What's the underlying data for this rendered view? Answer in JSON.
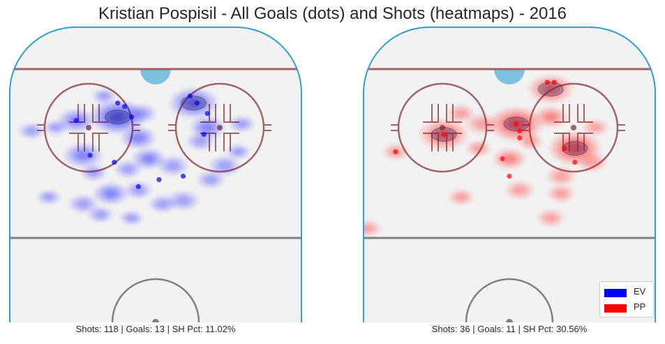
{
  "title": "Kristian Pospisil - All Goals (dots) and Shots (heatmaps) - 2016",
  "colors": {
    "ice": "#f2f2f2",
    "boards": "#2e9fd0",
    "goal_line": "#a06464",
    "circle": "#a06464",
    "blue_line": "#808080",
    "crease": "#7cc2e0",
    "ev": "#0000ff",
    "pp": "#ff0000"
  },
  "legend": {
    "position": "lower-right",
    "items": [
      {
        "label": "EV",
        "color": "#0000ff"
      },
      {
        "label": "PP",
        "color": "#ff0000"
      }
    ]
  },
  "chart_data": [
    {
      "type": "scatter",
      "strength": "EV",
      "caption": "Shots: 118 | Goals: 13 | SH Pct: 11.02%",
      "shots": 118,
      "goals_count": 13,
      "sh_pct": "11.02%",
      "xlim": [
        -42.5,
        42.5
      ],
      "ylim": [
        0,
        85
      ],
      "goals": [
        {
          "x": -11,
          "y": 63
        },
        {
          "x": -9,
          "y": 62
        },
        {
          "x": -23,
          "y": 58
        },
        {
          "x": -7,
          "y": 59
        },
        {
          "x": 10,
          "y": 65
        },
        {
          "x": 12,
          "y": 63
        },
        {
          "x": 15,
          "y": 60
        },
        {
          "x": 14,
          "y": 54
        },
        {
          "x": -19,
          "y": 48
        },
        {
          "x": -12,
          "y": 46
        },
        {
          "x": 1,
          "y": 41
        },
        {
          "x": -5,
          "y": 39
        },
        {
          "x": 8,
          "y": 42
        }
      ],
      "heatmap": [
        {
          "x": -11,
          "y": 59,
          "w": 0.95
        },
        {
          "x": 11,
          "y": 63,
          "w": 0.8
        },
        {
          "x": -21,
          "y": 48,
          "w": 0.55
        },
        {
          "x": -23,
          "y": 58,
          "w": 0.5
        },
        {
          "x": -5,
          "y": 53,
          "w": 0.45
        },
        {
          "x": -2,
          "y": 47,
          "w": 0.4
        },
        {
          "x": 15,
          "y": 56,
          "w": 0.45
        },
        {
          "x": 20,
          "y": 45,
          "w": 0.35
        },
        {
          "x": 5,
          "y": 45,
          "w": 0.35
        },
        {
          "x": -13,
          "y": 37,
          "w": 0.45
        },
        {
          "x": -5,
          "y": 38,
          "w": 0.25
        },
        {
          "x": 8,
          "y": 35,
          "w": 0.35
        },
        {
          "x": 2,
          "y": 34,
          "w": 0.25
        },
        {
          "x": -21,
          "y": 34,
          "w": 0.3
        },
        {
          "x": -36,
          "y": 55,
          "w": 0.2
        },
        {
          "x": -29,
          "y": 56,
          "w": 0.15
        },
        {
          "x": 16,
          "y": 41,
          "w": 0.25
        },
        {
          "x": 25,
          "y": 57,
          "w": 0.2
        },
        {
          "x": -4,
          "y": 60,
          "w": 0.3
        },
        {
          "x": 13,
          "y": 52,
          "w": 0.25
        },
        {
          "x": -16,
          "y": 31,
          "w": 0.2
        },
        {
          "x": -8,
          "y": 44,
          "w": 0.25
        },
        {
          "x": -18,
          "y": 43,
          "w": 0.2
        },
        {
          "x": -31,
          "y": 36,
          "w": 0.15
        },
        {
          "x": -7,
          "y": 30,
          "w": 0.15
        },
        {
          "x": 24,
          "y": 49,
          "w": 0.15
        },
        {
          "x": -15,
          "y": 65,
          "w": 0.15
        }
      ]
    },
    {
      "type": "scatter",
      "strength": "PP",
      "caption": "Shots: 36 | Goals: 11 | SH Pct: 30.56%",
      "shots": 36,
      "goals_count": 11,
      "sh_pct": "30.56%",
      "xlim": [
        -42.5,
        42.5
      ],
      "ylim": [
        0,
        85
      ],
      "goals": [
        {
          "x": 11,
          "y": 69
        },
        {
          "x": 13,
          "y": 69
        },
        {
          "x": 2,
          "y": 57
        },
        {
          "x": 3,
          "y": 55
        },
        {
          "x": 3,
          "y": 53
        },
        {
          "x": -19,
          "y": 54
        },
        {
          "x": -33,
          "y": 49
        },
        {
          "x": -2,
          "y": 47
        },
        {
          "x": 16,
          "y": 50
        },
        {
          "x": 19,
          "y": 46
        },
        {
          "x": 0,
          "y": 42
        }
      ],
      "heatmap": [
        {
          "x": 2,
          "y": 57,
          "w": 0.95
        },
        {
          "x": -19,
          "y": 54,
          "w": 0.8
        },
        {
          "x": 19,
          "y": 50,
          "w": 0.9
        },
        {
          "x": 12,
          "y": 67,
          "w": 0.7
        },
        {
          "x": 12,
          "y": 59,
          "w": 0.4
        },
        {
          "x": 0,
          "y": 47,
          "w": 0.4
        },
        {
          "x": -8,
          "y": 57,
          "w": 0.35
        },
        {
          "x": 3,
          "y": 38,
          "w": 0.3
        },
        {
          "x": -14,
          "y": 60,
          "w": 0.25
        },
        {
          "x": 15,
          "y": 42,
          "w": 0.3
        },
        {
          "x": 24,
          "y": 46,
          "w": 0.3
        },
        {
          "x": 15,
          "y": 37,
          "w": 0.25
        },
        {
          "x": -14,
          "y": 36,
          "w": 0.2
        },
        {
          "x": 12,
          "y": 30,
          "w": 0.25
        },
        {
          "x": -33,
          "y": 49,
          "w": 0.2
        },
        {
          "x": -9,
          "y": 50,
          "w": 0.2
        },
        {
          "x": -41,
          "y": 27,
          "w": 0.2
        },
        {
          "x": 6,
          "y": 52,
          "w": 0.2
        },
        {
          "x": 25,
          "y": 56,
          "w": 0.2
        }
      ]
    }
  ]
}
